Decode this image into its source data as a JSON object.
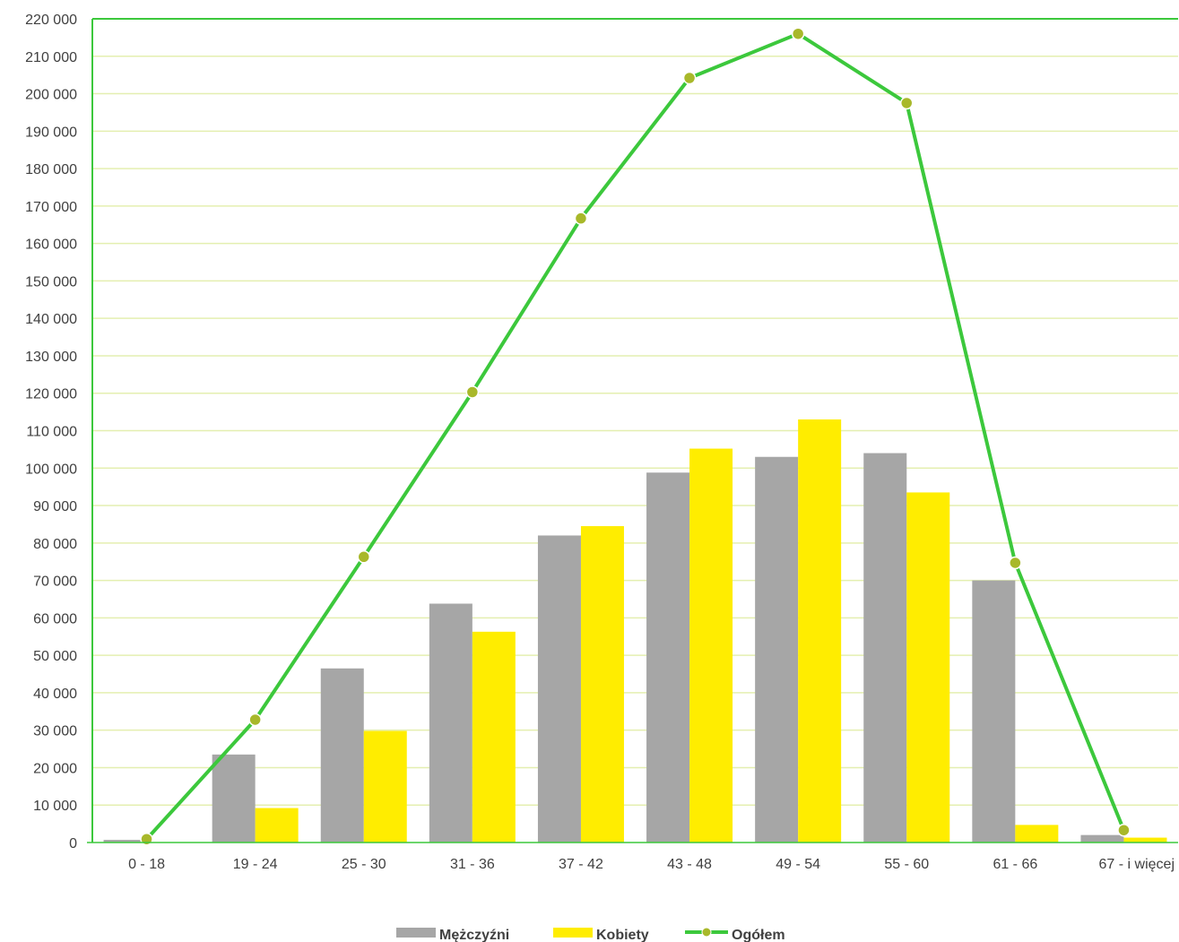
{
  "chart_data": {
    "type": "bar",
    "categories": [
      "0 -  18",
      "19 -  24",
      "25 -  30",
      "31 -  36",
      "37 -  42",
      "43 -  48",
      "49 -  54",
      "55 -  60",
      "61 -  66",
      "67 - i więcej"
    ],
    "series": [
      {
        "name": "Mężczyźni",
        "type": "bar",
        "color": "#a6a6a6",
        "values": [
          700,
          23500,
          46500,
          63800,
          82000,
          98800,
          103000,
          104000,
          70000,
          2000
        ]
      },
      {
        "name": "Kobiety",
        "type": "bar",
        "color": "#ffed00",
        "values": [
          0,
          9200,
          29800,
          56300,
          84500,
          105200,
          113000,
          93500,
          4700,
          1300
        ]
      },
      {
        "name": "Ogółem",
        "type": "line",
        "color": "#3cc83c",
        "marker_color": "#a8b82a",
        "values": [
          900,
          32800,
          76300,
          120300,
          166700,
          204200,
          216000,
          197500,
          74700,
          3300
        ]
      }
    ],
    "y_ticks": [
      "0",
      "10 000",
      "20 000",
      "30 000",
      "40 000",
      "50 000",
      "60 000",
      "70 000",
      "80 000",
      "90 000",
      "100 000",
      "110 000",
      "120 000",
      "130 000",
      "140 000",
      "150 000",
      "160 000",
      "170 000",
      "180 000",
      "190 000",
      "200 000",
      "210 000",
      "220 000"
    ],
    "ylim": [
      0,
      220000
    ],
    "ystep": 10000,
    "grid": true,
    "gridline_color": "#e4efb0",
    "axis_color": "#3cc83c",
    "legend_position": "bottom"
  }
}
